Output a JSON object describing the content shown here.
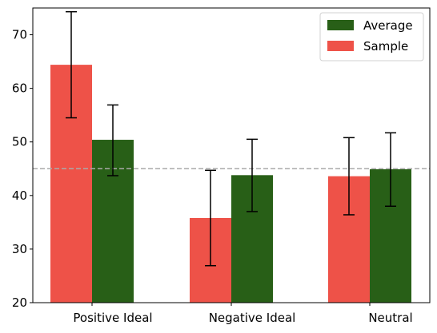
{
  "chart_data": {
    "type": "bar",
    "categories": [
      "Positive Ideal",
      "Negative Ideal",
      "Neutral"
    ],
    "series": [
      {
        "name": "Sample",
        "color": "#ee5248",
        "values": [
          64.4,
          35.8,
          43.6
        ],
        "error": [
          [
            54.5,
            74.3
          ],
          [
            26.9,
            44.7
          ],
          [
            36.4,
            50.8
          ]
        ]
      },
      {
        "name": "Average",
        "color": "#285f17",
        "values": [
          50.4,
          43.8,
          44.9
        ],
        "error": [
          [
            43.7,
            56.9
          ],
          [
            37.0,
            50.5
          ],
          [
            38.0,
            51.7
          ]
        ]
      }
    ],
    "reference_line": {
      "value": 45,
      "style": "dashed",
      "color": "#aaaaaa"
    },
    "ylim": [
      20,
      75
    ],
    "yticks": [
      "20",
      "30",
      "40",
      "50",
      "60",
      "70"
    ],
    "legend": {
      "placement": "top-right",
      "entries": [
        "Average",
        "Sample"
      ]
    },
    "grid": false,
    "title": "",
    "xlabel": "",
    "ylabel": ""
  }
}
